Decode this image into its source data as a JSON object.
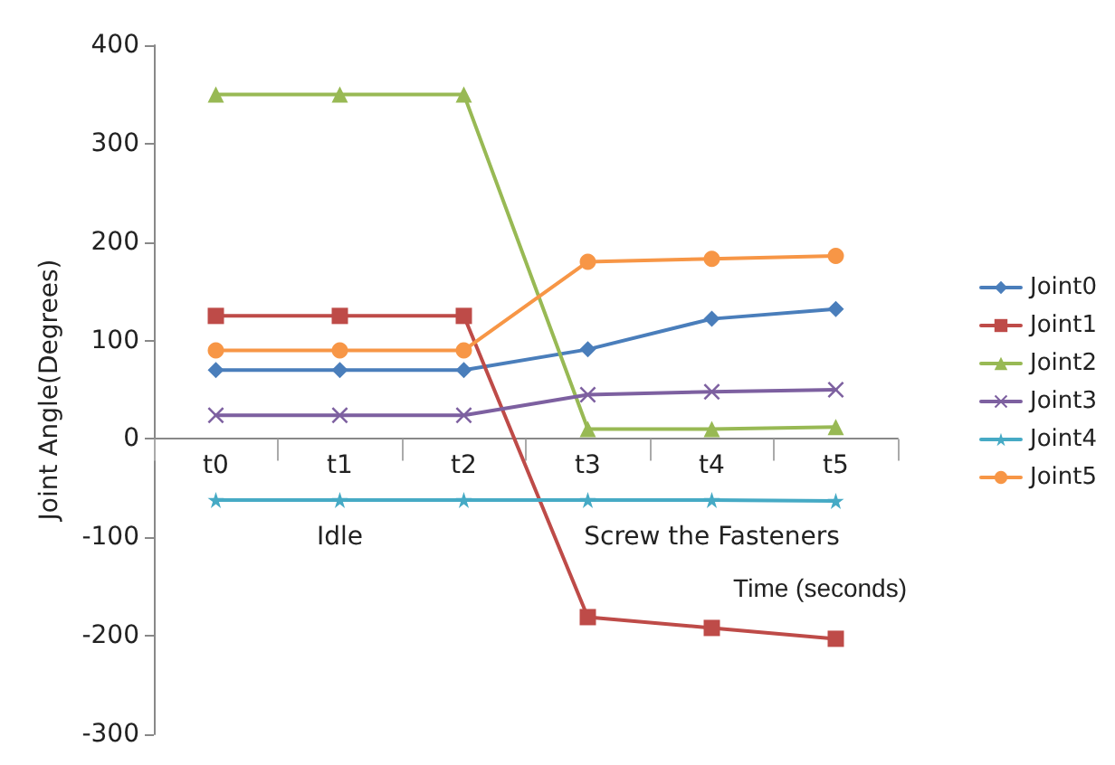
{
  "chart_data": {
    "type": "line",
    "xlabel": "Time (seconds)",
    "ylabel": "Joint Angle(Degrees)",
    "categories": [
      "t0",
      "t1",
      "t2",
      "t3",
      "t4",
      "t5"
    ],
    "ylim": [
      -300,
      400
    ],
    "yticks": [
      -300,
      -200,
      -100,
      0,
      100,
      200,
      300,
      400
    ],
    "grid": false,
    "legend": "right",
    "annotations": [
      "Idle",
      "Screw the Fasteners"
    ],
    "series": [
      {
        "name": "Joint0",
        "color": "#4a7ebb",
        "marker": "diamond",
        "values": [
          70,
          70,
          70,
          91,
          122,
          132
        ]
      },
      {
        "name": "Joint1",
        "color": "#be4b48",
        "marker": "square",
        "values": [
          125,
          125,
          125,
          -181,
          -192,
          -203
        ]
      },
      {
        "name": "Joint2",
        "color": "#98b954",
        "marker": "triangle",
        "values": [
          350,
          350,
          350,
          10,
          10,
          12
        ]
      },
      {
        "name": "Joint3",
        "color": "#7d60a0",
        "marker": "cross",
        "values": [
          24,
          24,
          24,
          45,
          48,
          50
        ]
      },
      {
        "name": "Joint4",
        "color": "#46aac5",
        "marker": "star",
        "values": [
          -62,
          -62,
          -62,
          -62,
          -62,
          -63
        ]
      },
      {
        "name": "Joint5",
        "color": "#f79646",
        "marker": "circle",
        "values": [
          90,
          90,
          90,
          180,
          183,
          186
        ]
      }
    ]
  }
}
